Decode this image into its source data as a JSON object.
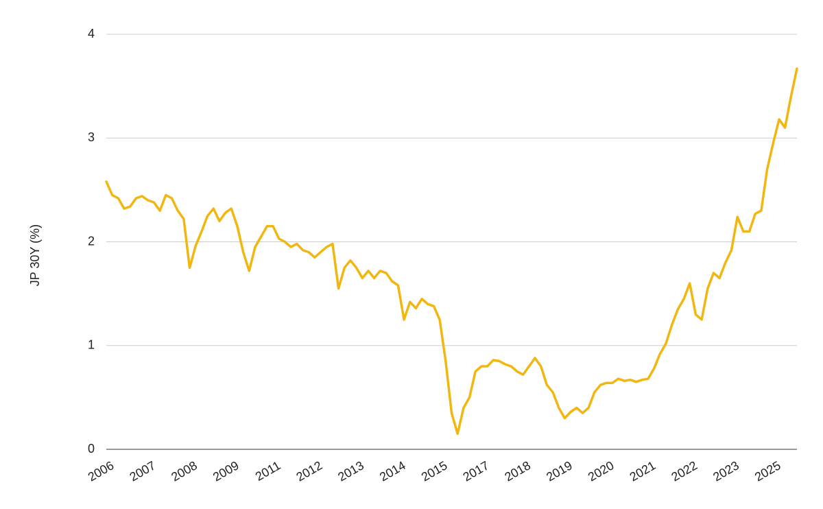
{
  "chart_data": {
    "type": "line",
    "y_label": "JP 30Y (%)",
    "categories": [
      "2006",
      null,
      null,
      null,
      null,
      null,
      null,
      "2007",
      null,
      null,
      null,
      null,
      null,
      null,
      "2008",
      null,
      null,
      null,
      null,
      null,
      null,
      "2009",
      null,
      null,
      null,
      null,
      null,
      null,
      "2011",
      null,
      null,
      null,
      null,
      null,
      null,
      "2012",
      null,
      null,
      null,
      null,
      null,
      null,
      "2013",
      null,
      null,
      null,
      null,
      null,
      null,
      "2014",
      null,
      null,
      null,
      null,
      null,
      null,
      "2015",
      null,
      null,
      null,
      null,
      null,
      null,
      "2017",
      null,
      null,
      null,
      null,
      null,
      null,
      "2018",
      null,
      null,
      null,
      null,
      null,
      null,
      "2019",
      null,
      null,
      null,
      null,
      null,
      null,
      "2020",
      null,
      null,
      null,
      null,
      null,
      null,
      "2021",
      null,
      null,
      null,
      null,
      null,
      null,
      "2022",
      null,
      null,
      null,
      null,
      null,
      null,
      "2023",
      null,
      null,
      null,
      null,
      null,
      null,
      "2025",
      null,
      null,
      null,
      null
    ],
    "values": [
      2.58,
      2.45,
      2.42,
      2.32,
      2.34,
      2.42,
      2.44,
      2.4,
      2.38,
      2.3,
      2.45,
      2.42,
      2.3,
      2.22,
      1.75,
      1.96,
      2.1,
      2.25,
      2.32,
      2.2,
      2.28,
      2.32,
      2.15,
      1.9,
      1.72,
      1.95,
      2.05,
      2.15,
      2.15,
      2.03,
      2.0,
      1.95,
      1.98,
      1.92,
      1.9,
      1.85,
      1.9,
      1.95,
      1.98,
      1.55,
      1.75,
      1.82,
      1.75,
      1.65,
      1.72,
      1.65,
      1.72,
      1.7,
      1.62,
      1.58,
      1.25,
      1.42,
      1.36,
      1.45,
      1.4,
      1.38,
      1.25,
      0.85,
      0.35,
      0.15,
      0.4,
      0.5,
      0.75,
      0.8,
      0.8,
      0.86,
      0.85,
      0.82,
      0.8,
      0.75,
      0.72,
      0.8,
      0.88,
      0.8,
      0.62,
      0.55,
      0.4,
      0.3,
      0.36,
      0.4,
      0.35,
      0.4,
      0.55,
      0.62,
      0.64,
      0.64,
      0.68,
      0.66,
      0.67,
      0.65,
      0.67,
      0.68,
      0.78,
      0.92,
      1.02,
      1.2,
      1.35,
      1.45,
      1.6,
      1.3,
      1.25,
      1.55,
      1.7,
      1.65,
      1.8,
      1.92,
      2.24,
      2.1,
      2.1,
      2.27,
      2.3,
      2.7,
      2.95,
      3.18,
      3.1,
      3.4,
      3.67
    ],
    "color": "#f1b710",
    "ylim": [
      0,
      4
    ],
    "yticks": [
      0,
      1,
      2,
      3,
      4
    ],
    "grid": true
  }
}
